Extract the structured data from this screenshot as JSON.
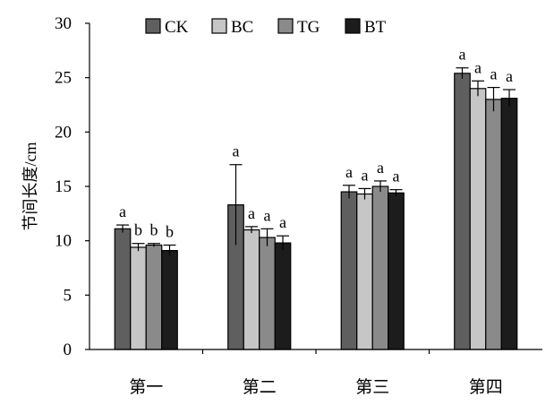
{
  "chart_data": {
    "type": "bar",
    "title": "",
    "xlabel": "",
    "ylabel": "节间长度/cm",
    "ylim": [
      0,
      30
    ],
    "yticks": [
      0,
      5,
      10,
      15,
      20,
      25,
      30
    ],
    "categories": [
      "第一",
      "第二",
      "第三",
      "第四"
    ],
    "legend_position": "top",
    "series": [
      {
        "name": "CK",
        "color": "#5f5f5f",
        "values": [
          11.1,
          13.3,
          14.5,
          25.4
        ],
        "errors": [
          0.35,
          3.7,
          0.6,
          0.5
        ],
        "labels": [
          "a",
          "a",
          "a",
          "a"
        ]
      },
      {
        "name": "BC",
        "color": "#c6c6c6",
        "values": [
          9.4,
          11.0,
          14.3,
          24.0
        ],
        "errors": [
          0.35,
          0.3,
          0.5,
          0.7
        ],
        "labels": [
          "b",
          "a",
          "a",
          "a"
        ]
      },
      {
        "name": "TG",
        "color": "#8a8a8a",
        "values": [
          9.6,
          10.3,
          15.0,
          23.0
        ],
        "errors": [
          0.15,
          0.8,
          0.5,
          1.1
        ],
        "labels": [
          "b",
          "a",
          "a",
          "a"
        ]
      },
      {
        "name": "BT",
        "color": "#1c1c1c",
        "values": [
          9.1,
          9.8,
          14.4,
          23.1
        ],
        "errors": [
          0.5,
          0.65,
          0.3,
          0.8
        ],
        "labels": [
          "b",
          "a",
          "a",
          "a"
        ]
      }
    ]
  }
}
